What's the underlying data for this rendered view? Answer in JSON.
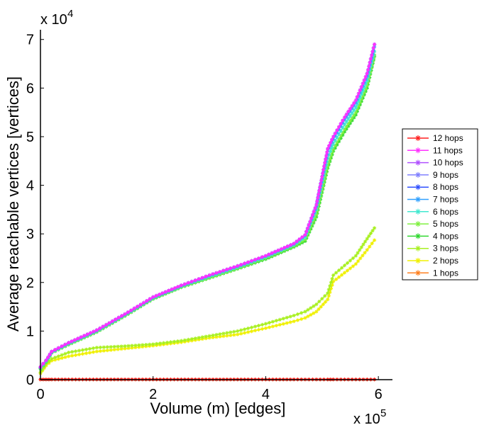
{
  "chart_data": {
    "type": "line",
    "xlabel": "Volume (m) [edges]",
    "ylabel": "Average reachable vertices [vertices]",
    "x_multiplier_label": "x 10",
    "x_multiplier_exp": "5",
    "y_multiplier_label": "x 10",
    "y_multiplier_exp": "4",
    "xlim": [
      0,
      625000
    ],
    "ylim": [
      0,
      72000
    ],
    "xticks": [
      0,
      200000,
      400000,
      600000
    ],
    "xtick_labels": [
      "0",
      "2",
      "4",
      "6"
    ],
    "yticks": [
      0,
      10000,
      20000,
      30000,
      40000,
      50000,
      60000,
      70000
    ],
    "ytick_labels": [
      "0",
      "1",
      "2",
      "3",
      "4",
      "5",
      "6",
      "7"
    ],
    "grid": false,
    "legend_position": "right",
    "x": [
      0,
      10000,
      20000,
      50000,
      100000,
      150000,
      200000,
      250000,
      300000,
      350000,
      400000,
      450000,
      470000,
      490000,
      510000,
      520000,
      540000,
      560000,
      580000,
      593000
    ],
    "series": [
      {
        "name": "12 hops",
        "color": "#ff2020",
        "values": [
          50,
          50,
          50,
          50,
          50,
          50,
          50,
          50,
          50,
          50,
          50,
          50,
          50,
          50,
          50,
          50,
          50,
          50,
          50,
          50
        ]
      },
      {
        "name": "11 hops",
        "color": "#ff30ff",
        "values": [
          2600,
          4000,
          5800,
          7600,
          10200,
          13500,
          17000,
          19400,
          21500,
          23400,
          25500,
          28000,
          29800,
          36000,
          47500,
          50000,
          54000,
          57500,
          63000,
          69000
        ]
      },
      {
        "name": "10 hops",
        "color": "#b050ff",
        "values": [
          2600,
          4000,
          5800,
          7600,
          10200,
          13500,
          17000,
          19400,
          21500,
          23400,
          25500,
          28000,
          29800,
          36000,
          47500,
          50000,
          54000,
          57500,
          63000,
          69000
        ]
      },
      {
        "name": "9 hops",
        "color": "#8080ff",
        "values": [
          2600,
          4000,
          5800,
          7600,
          10200,
          13500,
          17000,
          19400,
          21500,
          23400,
          25500,
          28000,
          29800,
          36000,
          47500,
          50000,
          54000,
          57500,
          63000,
          69000
        ]
      },
      {
        "name": "8 hops",
        "color": "#3050ff",
        "values": [
          2600,
          4000,
          5800,
          7600,
          10200,
          13500,
          17000,
          19400,
          21500,
          23400,
          25500,
          28000,
          29800,
          36000,
          47500,
          50000,
          54000,
          57500,
          63000,
          69000
        ]
      },
      {
        "name": "7 hops",
        "color": "#30a0ff",
        "values": [
          2500,
          3900,
          5700,
          7500,
          10100,
          13400,
          16900,
          19300,
          21400,
          23300,
          25400,
          27900,
          29700,
          35700,
          47000,
          49500,
          53500,
          57000,
          62500,
          68500
        ]
      },
      {
        "name": "6 hops",
        "color": "#40e8d0",
        "values": [
          2400,
          3800,
          5600,
          7400,
          10000,
          13300,
          16800,
          19200,
          21200,
          23100,
          25200,
          27700,
          29300,
          35000,
          45500,
          48500,
          52500,
          56000,
          61500,
          67500
        ]
      },
      {
        "name": "5 hops",
        "color": "#80f040",
        "values": [
          2300,
          3700,
          5500,
          7300,
          9900,
          13200,
          16700,
          19100,
          21000,
          22900,
          25000,
          27500,
          28800,
          34000,
          44000,
          47500,
          51500,
          55000,
          60500,
          66800
        ]
      },
      {
        "name": "4 hops",
        "color": "#30d830",
        "values": [
          2200,
          3600,
          5500,
          7200,
          9800,
          13100,
          16600,
          19000,
          20900,
          22800,
          24800,
          27300,
          28500,
          33500,
          43500,
          47000,
          51000,
          54500,
          60000,
          66500
        ]
      },
      {
        "name": "3 hops",
        "color": "#a8f020",
        "values": [
          1500,
          3200,
          4300,
          5600,
          6600,
          6900,
          7300,
          8000,
          9000,
          10000,
          11500,
          13200,
          14000,
          15500,
          17800,
          21500,
          23500,
          25500,
          29000,
          31200
        ]
      },
      {
        "name": "2 hops",
        "color": "#f0f000",
        "values": [
          1300,
          2900,
          3900,
          4800,
          5800,
          6400,
          7000,
          7700,
          8600,
          9300,
          10600,
          12000,
          12700,
          14000,
          16500,
          20200,
          22000,
          23800,
          26700,
          28700
        ]
      },
      {
        "name": "1 hops",
        "color": "#ff8020",
        "values": [
          30,
          30,
          30,
          30,
          30,
          30,
          30,
          30,
          30,
          30,
          30,
          30,
          30,
          30,
          30,
          30,
          30,
          30,
          30,
          30
        ]
      }
    ]
  }
}
